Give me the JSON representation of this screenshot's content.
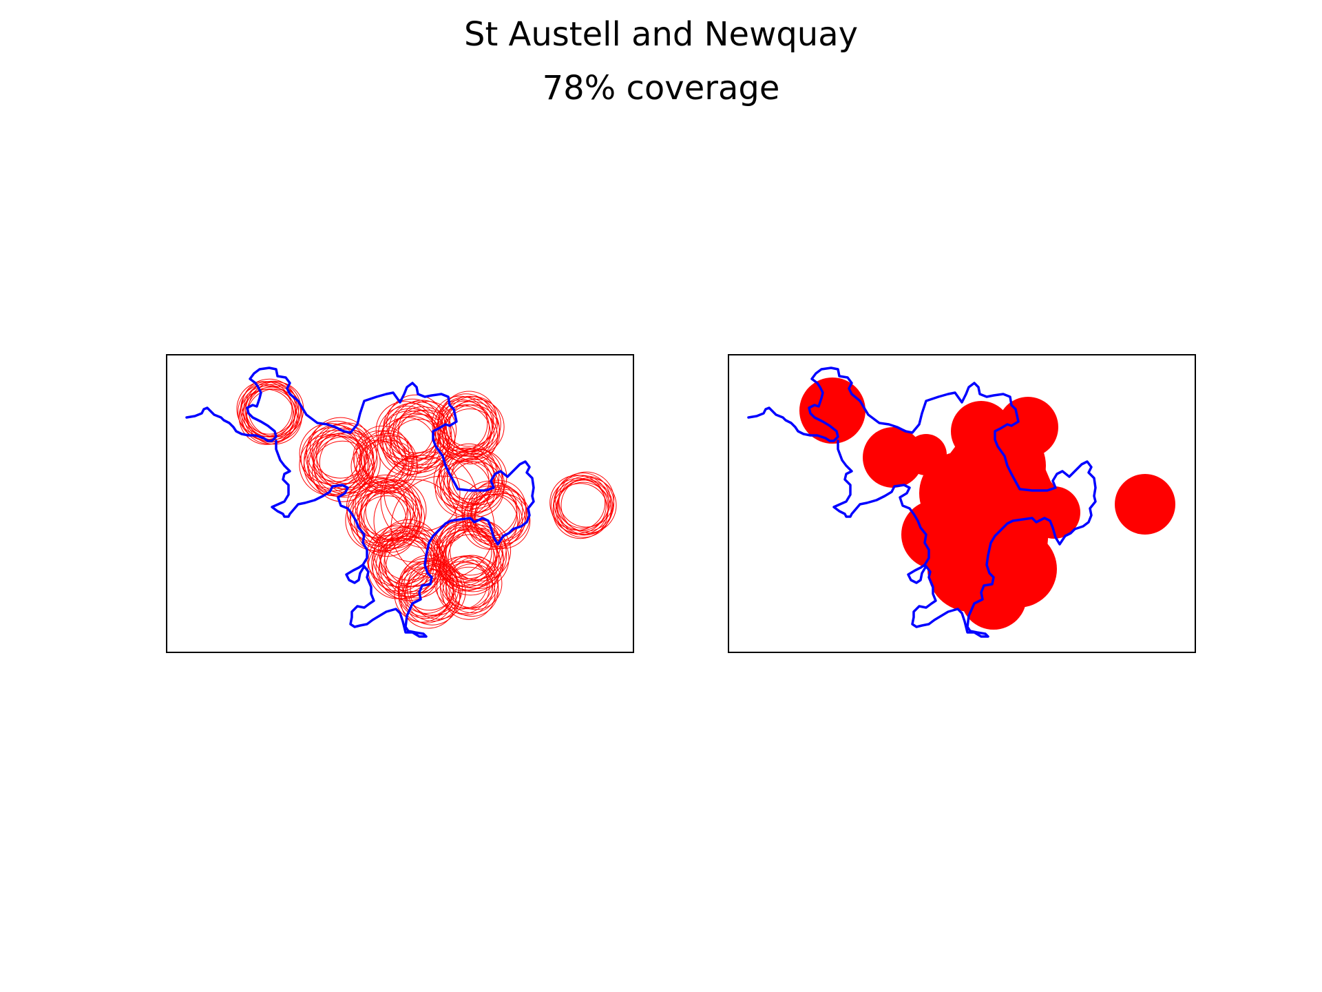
{
  "figure": {
    "title": "St Austell and Newquay",
    "subtitle": "78% coverage"
  },
  "colors": {
    "boundary": "#0000ff",
    "coverage": "#ff0000",
    "frame": "#000000",
    "background": "#ffffff"
  },
  "panels": [
    {
      "id": "left",
      "style": "circle-outlines"
    },
    {
      "id": "right",
      "style": "filled-coverage"
    }
  ]
}
